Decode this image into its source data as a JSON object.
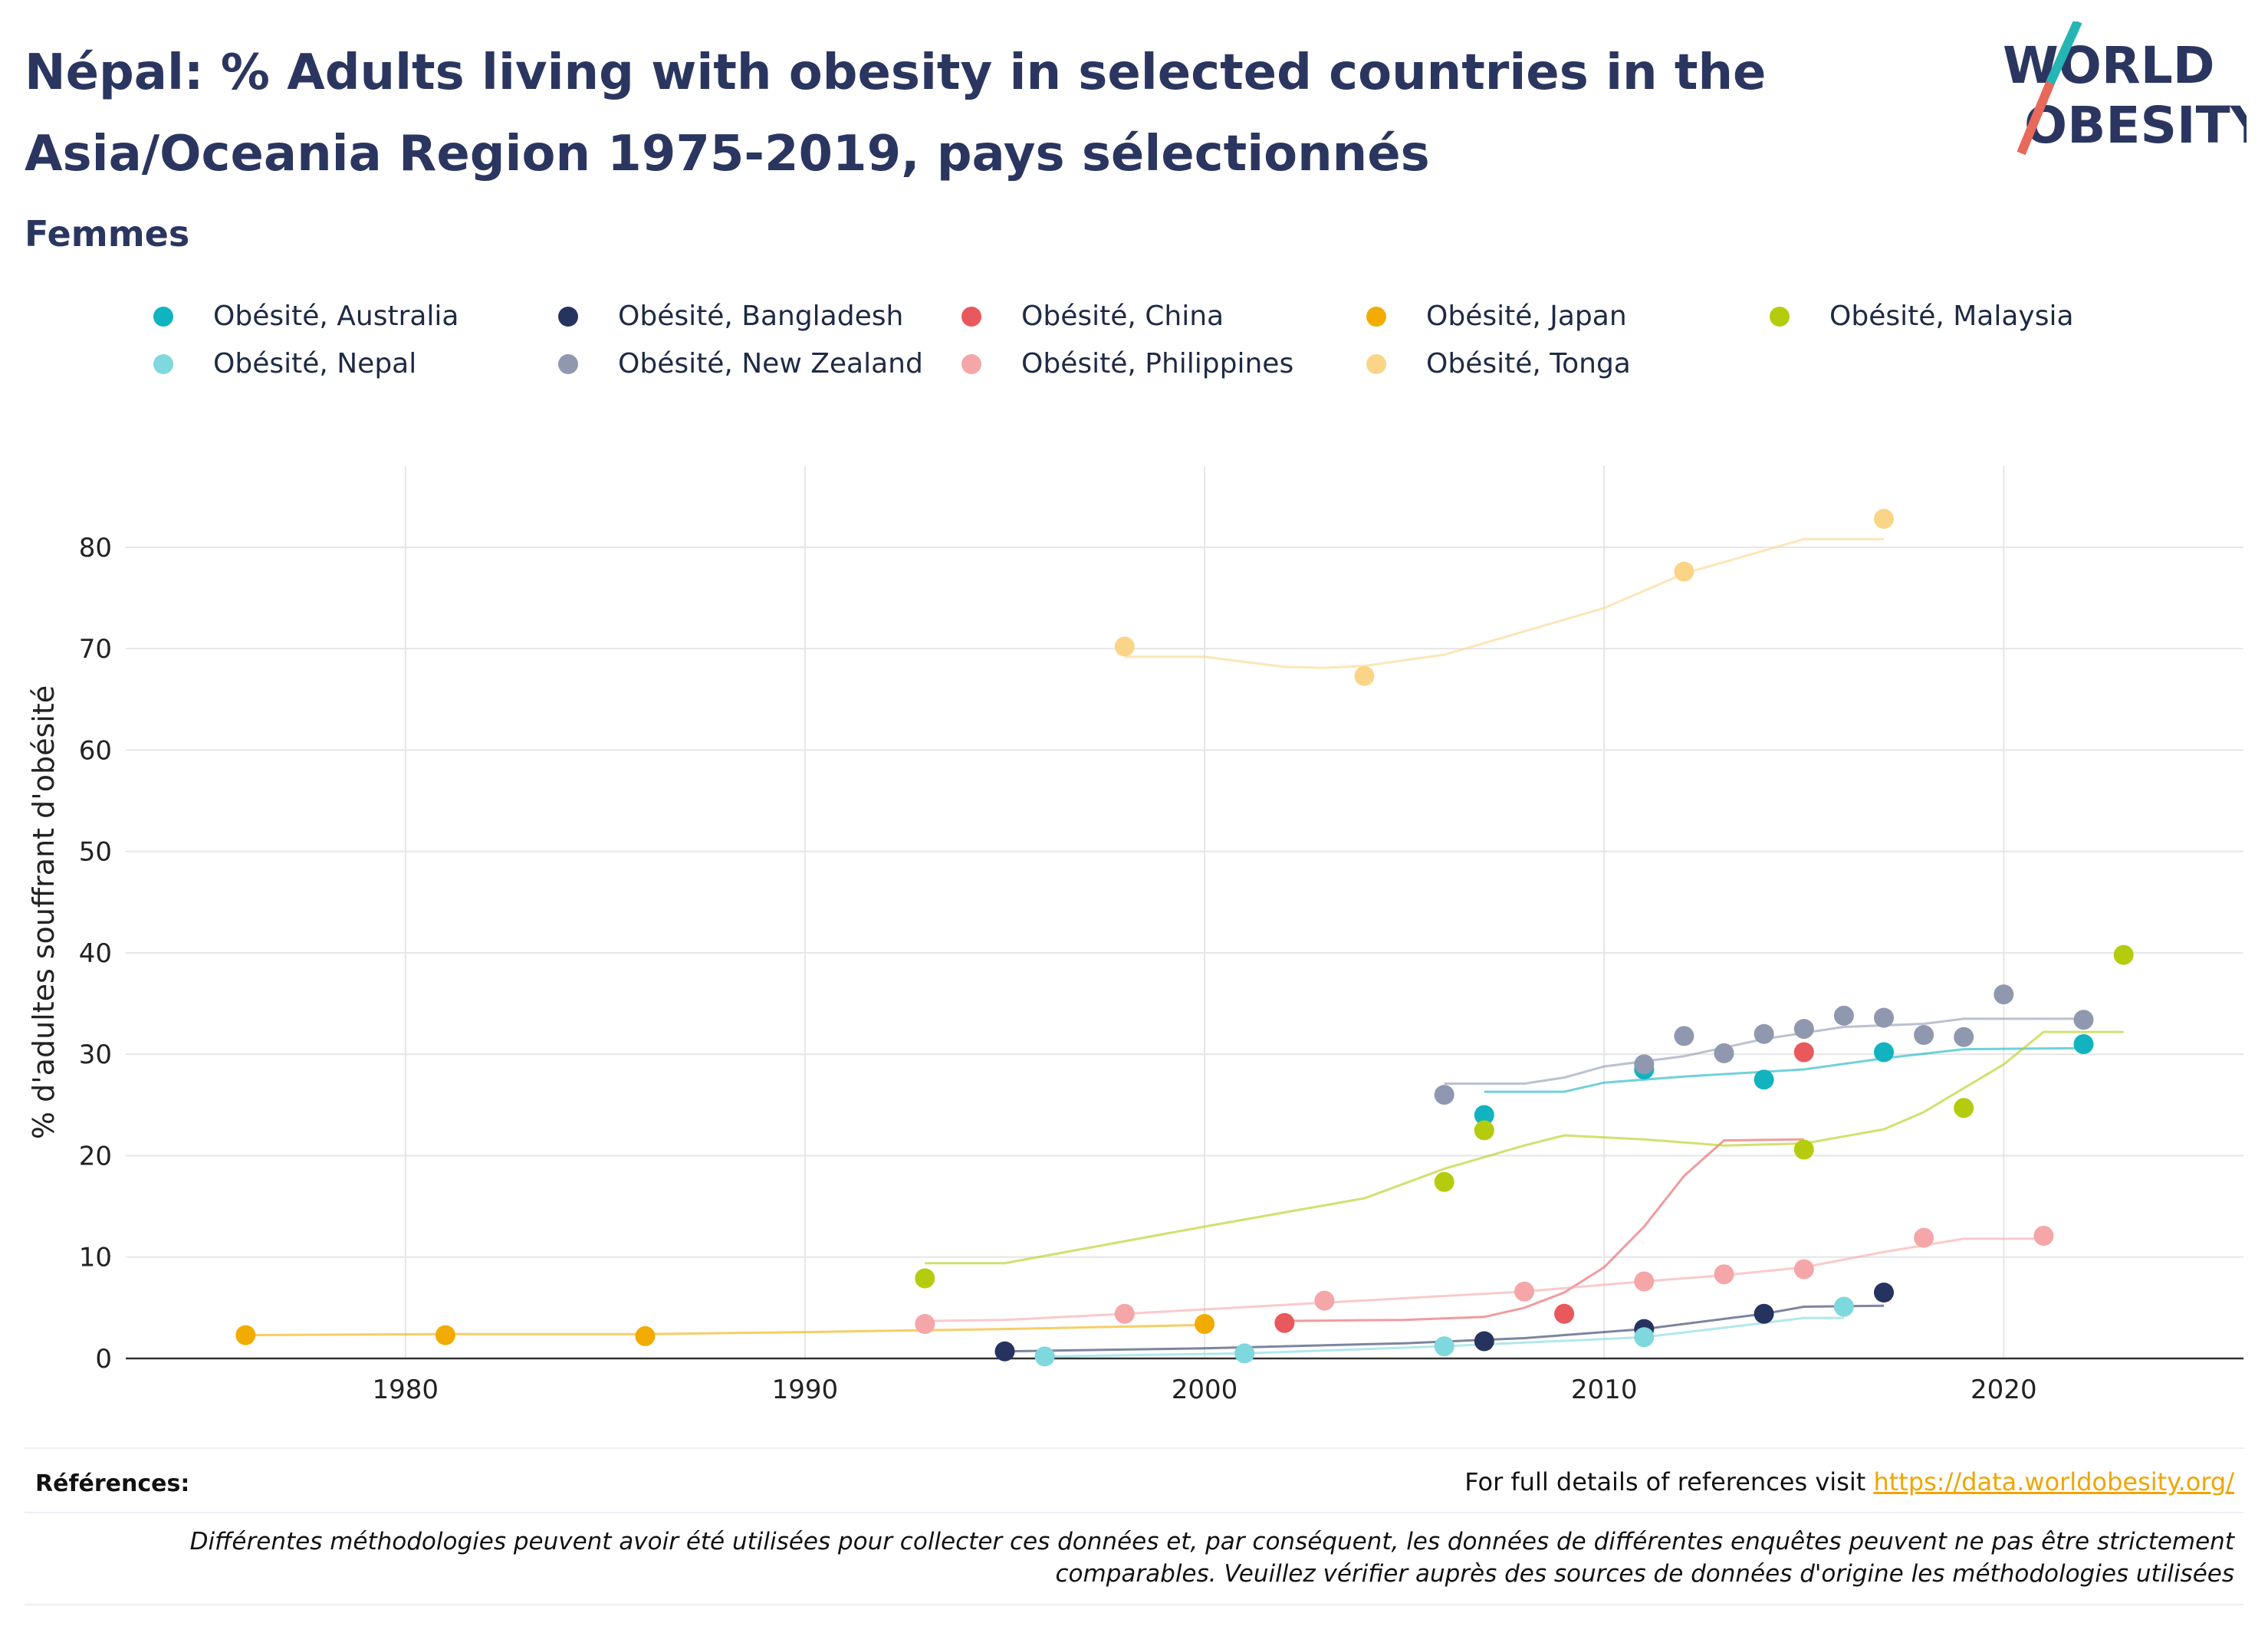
{
  "header": {
    "title": "Népal: % Adults living with obesity in selected countries in the Asia/Oceania Region 1975-2019, pays sélectionnés",
    "subtitle": "Femmes"
  },
  "logo": {
    "line1": "WORLD",
    "line2": "OBESITY",
    "colors": {
      "text": "#2b3660",
      "teal": "#26b5b5",
      "red": "#e8685a"
    }
  },
  "footer": {
    "references_label": "Références:",
    "references_text": "For full details of references visit",
    "references_link": "https://data.worldobesity.org/",
    "disclaimer": "Différentes méthodologies peuvent avoir été utilisées pour collecter ces données et, par conséquent, les données de différentes enquêtes peuvent ne pas être strictement comparables. Veuillez vérifier auprès des sources de données d'origine les méthodologies utilisées"
  },
  "chart_data": {
    "type": "scatter",
    "title": "Népal: % Adults living with obesity in selected countries in the Asia/Oceania Region 1975-2019, pays sélectionnés",
    "subtitle": "Femmes",
    "xlabel": "",
    "ylabel": "% d'adultes souffrant d'obésité",
    "xlim": [
      1973,
      2026
    ],
    "ylim": [
      0,
      88
    ],
    "xticks": [
      1980,
      1990,
      2000,
      2010,
      2020
    ],
    "yticks": [
      0,
      10,
      20,
      30,
      40,
      50,
      60,
      70,
      80
    ],
    "grid": true,
    "legend_position": "top",
    "series": [
      {
        "name": "Obésité, Australia",
        "color": "#11b3bf",
        "points": [
          [
            2007,
            24.0
          ],
          [
            2011,
            28.5
          ],
          [
            2014,
            27.5
          ],
          [
            2017,
            30.2
          ],
          [
            2022,
            31.0
          ]
        ],
        "trend": [
          [
            2007,
            26.3
          ],
          [
            2009,
            26.3
          ],
          [
            2010,
            27.2
          ],
          [
            2012,
            27.8
          ],
          [
            2015,
            28.5
          ],
          [
            2017,
            29.6
          ],
          [
            2019,
            30.5
          ],
          [
            2022,
            30.6
          ]
        ]
      },
      {
        "name": "Obésité, Bangladesh",
        "color": "#27335f",
        "points": [
          [
            1995,
            0.7
          ],
          [
            2007,
            1.7
          ],
          [
            2011,
            2.9
          ],
          [
            2014,
            4.4
          ],
          [
            2017,
            6.5
          ]
        ],
        "trend": [
          [
            1995,
            0.7
          ],
          [
            2000,
            1.0
          ],
          [
            2005,
            1.5
          ],
          [
            2008,
            2.0
          ],
          [
            2011,
            2.9
          ],
          [
            2014,
            4.4
          ],
          [
            2015,
            5.1
          ],
          [
            2017,
            5.2
          ]
        ]
      },
      {
        "name": "Obésité, China",
        "color": "#e8585c",
        "points": [
          [
            2002,
            3.5
          ],
          [
            2009,
            4.4
          ],
          [
            2015,
            30.2
          ]
        ],
        "trend": [
          [
            2002,
            3.7
          ],
          [
            2005,
            3.8
          ],
          [
            2007,
            4.1
          ],
          [
            2008,
            5.0
          ],
          [
            2009,
            6.5
          ],
          [
            2010,
            9.0
          ],
          [
            2011,
            13.0
          ],
          [
            2012,
            18.0
          ],
          [
            2013,
            21.5
          ],
          [
            2015,
            21.6
          ]
        ]
      },
      {
        "name": "Obésité, Japan",
        "color": "#f2ab00",
        "points": [
          [
            1976,
            2.3
          ],
          [
            1981,
            2.3
          ],
          [
            1986,
            2.2
          ],
          [
            2000,
            3.4
          ]
        ],
        "trend": [
          [
            1976,
            2.3
          ],
          [
            1981,
            2.4
          ],
          [
            1986,
            2.4
          ],
          [
            1990,
            2.6
          ],
          [
            1995,
            2.9
          ],
          [
            2000,
            3.3
          ]
        ]
      },
      {
        "name": "Obésité, Malaysia",
        "color": "#b5cc0e",
        "points": [
          [
            1993,
            7.9
          ],
          [
            2006,
            17.4
          ],
          [
            2007,
            22.5
          ],
          [
            2015,
            20.6
          ],
          [
            2019,
            24.7
          ],
          [
            2023,
            39.8
          ]
        ],
        "trend": [
          [
            1993,
            9.4
          ],
          [
            1995,
            9.4
          ],
          [
            2000,
            13.0
          ],
          [
            2004,
            15.8
          ],
          [
            2006,
            18.7
          ],
          [
            2008,
            21.0
          ],
          [
            2009,
            22.0
          ],
          [
            2011,
            21.6
          ],
          [
            2013,
            21.0
          ],
          [
            2015,
            21.2
          ],
          [
            2017,
            22.6
          ],
          [
            2018,
            24.3
          ],
          [
            2020,
            29.0
          ],
          [
            2021,
            32.2
          ],
          [
            2023,
            32.2
          ]
        ]
      },
      {
        "name": "Obésité, Nepal",
        "color": "#7ed8dd",
        "points": [
          [
            1996,
            0.2
          ],
          [
            2001,
            0.5
          ],
          [
            2006,
            1.2
          ],
          [
            2011,
            2.1
          ],
          [
            2016,
            5.1
          ]
        ],
        "trend": [
          [
            1996,
            0.2
          ],
          [
            2001,
            0.5
          ],
          [
            2006,
            1.2
          ],
          [
            2011,
            2.1
          ],
          [
            2014,
            3.5
          ],
          [
            2015,
            4.0
          ],
          [
            2016,
            4.0
          ]
        ]
      },
      {
        "name": "Obésité, New Zealand",
        "color": "#9098b0",
        "points": [
          [
            2006,
            26.0
          ],
          [
            2011,
            29.0
          ],
          [
            2012,
            31.8
          ],
          [
            2013,
            30.1
          ],
          [
            2014,
            32.0
          ],
          [
            2015,
            32.5
          ],
          [
            2016,
            33.8
          ],
          [
            2017,
            33.6
          ],
          [
            2018,
            31.9
          ],
          [
            2019,
            31.7
          ],
          [
            2020,
            35.9
          ],
          [
            2022,
            33.4
          ]
        ],
        "trend": [
          [
            2006,
            27.1
          ],
          [
            2008,
            27.1
          ],
          [
            2009,
            27.7
          ],
          [
            2010,
            28.8
          ],
          [
            2012,
            29.8
          ],
          [
            2014,
            31.5
          ],
          [
            2016,
            32.7
          ],
          [
            2018,
            33.0
          ],
          [
            2019,
            33.5
          ],
          [
            2022,
            33.5
          ]
        ]
      },
      {
        "name": "Obésité, Philippines",
        "color": "#f5a6a8",
        "points": [
          [
            1993,
            3.4
          ],
          [
            1998,
            4.4
          ],
          [
            2003,
            5.7
          ],
          [
            2008,
            6.6
          ],
          [
            2011,
            7.6
          ],
          [
            2013,
            8.3
          ],
          [
            2015,
            8.8
          ],
          [
            2018,
            11.9
          ],
          [
            2021,
            12.1
          ]
        ],
        "trend": [
          [
            1993,
            3.7
          ],
          [
            1995,
            3.8
          ],
          [
            1998,
            4.4
          ],
          [
            2003,
            5.5
          ],
          [
            2008,
            6.6
          ],
          [
            2011,
            7.6
          ],
          [
            2013,
            8.2
          ],
          [
            2015,
            9.0
          ],
          [
            2017,
            10.5
          ],
          [
            2019,
            11.8
          ],
          [
            2021,
            11.8
          ]
        ]
      },
      {
        "name": "Obésité, Tonga",
        "color": "#fad588",
        "points": [
          [
            1998,
            70.2
          ],
          [
            2004,
            67.3
          ],
          [
            2012,
            77.6
          ],
          [
            2017,
            82.8
          ]
        ],
        "trend": [
          [
            1998,
            69.2
          ],
          [
            2000,
            69.2
          ],
          [
            2002,
            68.2
          ],
          [
            2003,
            68.1
          ],
          [
            2004,
            68.3
          ],
          [
            2006,
            69.4
          ],
          [
            2010,
            74.0
          ],
          [
            2012,
            77.4
          ],
          [
            2015,
            80.8
          ],
          [
            2017,
            80.8
          ]
        ]
      }
    ]
  }
}
